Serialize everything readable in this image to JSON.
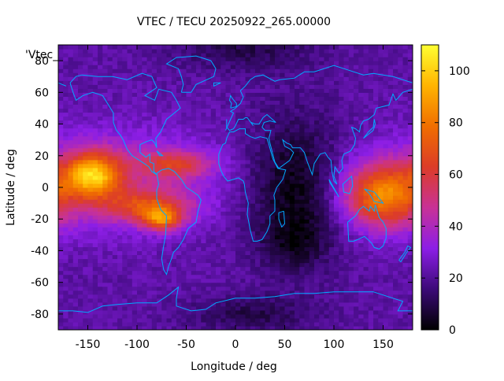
{
  "chart_data": {
    "type": "heatmap",
    "title": "VTEC / TECU 20250922_265.00000",
    "xlabel": "Longitude / deg",
    "ylabel": "Latitude / deg",
    "series_label": "'Vtec_",
    "xlim": [
      -180,
      180
    ],
    "ylim": [
      -90,
      90
    ],
    "x_ticks": [
      -150,
      -100,
      -50,
      0,
      50,
      100,
      150
    ],
    "y_ticks": [
      -80,
      -60,
      -40,
      -20,
      0,
      20,
      40,
      60,
      80
    ],
    "colorbar": {
      "min": 0,
      "max": 110,
      "ticks": [
        0,
        20,
        40,
        60,
        80,
        100
      ]
    },
    "colormap": [
      "#000000",
      "#3c0a78",
      "#8c1ee6",
      "#c83296",
      "#dc3c28",
      "#f06e00",
      "#ffb400",
      "#ffff32"
    ],
    "coastline_color": "#00aaff",
    "grid": false,
    "cell_size_deg": [
      5,
      2.5
    ],
    "features": {
      "equatorial_anomaly_pacific": {
        "lon": -145,
        "lat": 8,
        "peak_tecu": 105
      },
      "south_american_crest": {
        "lon": -75,
        "lat": -20,
        "peak_tecu": 85
      },
      "western_pacific_crest": {
        "lon": 150,
        "lat": -5,
        "peak_tecu": 80
      },
      "night_side_minimum": {
        "lon": 60,
        "lat": 0,
        "min_tecu": 2
      }
    }
  }
}
